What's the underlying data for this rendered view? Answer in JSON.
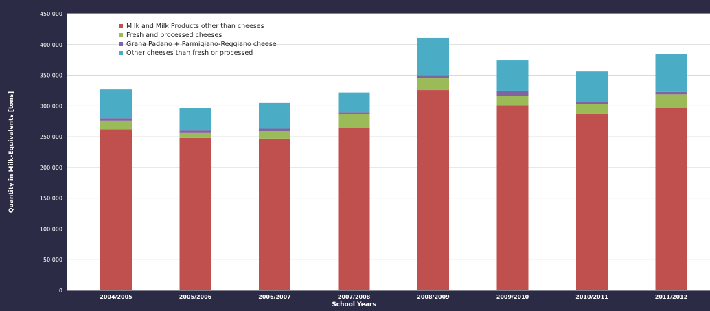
{
  "chart_data": {
    "type": "bar",
    "stacked": true,
    "xlabel": "School Years",
    "ylabel": "Quantity in Milk-Equivalents [tons]",
    "ylim": [
      0,
      450000
    ],
    "yticks": [
      0,
      50000,
      100000,
      150000,
      200000,
      250000,
      300000,
      350000,
      400000,
      450000
    ],
    "ytick_labels": [
      "0",
      "50.000",
      "100.000",
      "150.000",
      "200.000",
      "250.000",
      "300.000",
      "350.000",
      "400.000",
      "450.000"
    ],
    "grid": true,
    "legend_position": "top-left",
    "categories": [
      "2004/2005",
      "2005/2006",
      "2006/2007",
      "2007/2008",
      "2008/2009",
      "2009/2010",
      "2010/2011",
      "2011/2012"
    ],
    "series": [
      {
        "name": "Milk and Milk Products other than cheeses",
        "color": "#c0504d",
        "values": [
          262000,
          248000,
          247000,
          265000,
          326000,
          301000,
          287000,
          297000
        ]
      },
      {
        "name": "Fresh and processed cheeses",
        "color": "#9bbb59",
        "values": [
          14000,
          9000,
          12000,
          22000,
          19000,
          15000,
          16000,
          22000
        ]
      },
      {
        "name": "Grana Padano + Parmigiano-Reggiano cheese",
        "color": "#8064a2",
        "values": [
          4000,
          3000,
          4000,
          3000,
          5000,
          9000,
          4000,
          4000
        ]
      },
      {
        "name": "Other cheeses than fresh or processed",
        "color": "#4bacc6",
        "values": [
          47000,
          36000,
          42000,
          32000,
          61000,
          49000,
          49000,
          62000
        ]
      }
    ]
  }
}
